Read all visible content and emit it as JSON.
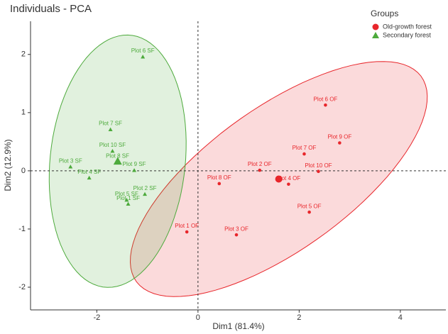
{
  "chart_data": {
    "type": "scatter",
    "title": "Individuals - PCA",
    "x_label": "Dim1 (81.4%)",
    "y_label": "Dim2 (12.9%)",
    "legend_title": "Groups",
    "legend_position": "top-right",
    "xlim": [
      -3.31,
      4.9
    ],
    "ylim": [
      -2.39,
      2.57
    ],
    "xticks": [
      -2,
      0,
      2,
      4
    ],
    "yticks": [
      -2,
      -1,
      0,
      1,
      2
    ],
    "reference_lines": true,
    "ellipses": true,
    "series": [
      {
        "name": "Old-growth forest",
        "color": "#e8262b",
        "marker": "circle",
        "labels": [
          "Plot 1 OF",
          "Plot 2 OF",
          "Plot 3 OF",
          "Plot 4 OF",
          "Plot 5 OF",
          "Plot 6 OF",
          "Plot 7 OF",
          "Plot 8 OF",
          "Plot 9 OF",
          "Plot 10 OF"
        ],
        "x": [
          -0.22,
          1.22,
          0.76,
          1.79,
          2.2,
          2.52,
          2.1,
          0.42,
          2.8,
          2.38
        ],
        "values": [
          -1.05,
          0.01,
          -1.1,
          -0.23,
          -0.71,
          1.13,
          0.29,
          -0.22,
          0.48,
          -0.01
        ]
      },
      {
        "name": "Secondary forest",
        "color": "#4daa3c",
        "marker": "triangle",
        "labels": [
          "Plot 1 SF",
          "Plot 2 SF",
          "Plot 3 SF",
          "Plot 4 SF",
          "Plot 5 SF",
          "Plot 6 SF",
          "Plot 7 SF",
          "Plot 8 SF",
          "Plot 9 SF",
          "Plot 10 SF"
        ],
        "x": [
          -1.38,
          -1.05,
          -2.52,
          -2.15,
          -1.41,
          -1.09,
          -1.73,
          -1.59,
          -1.26,
          -1.69
        ],
        "values": [
          -0.57,
          -0.4,
          0.07,
          -0.12,
          -0.5,
          1.96,
          0.71,
          0.15,
          0.01,
          0.34
        ]
      }
    ]
  }
}
